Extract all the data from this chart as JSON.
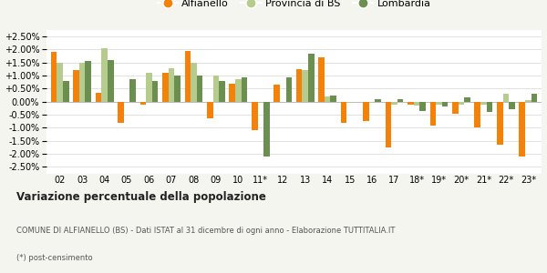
{
  "categories": [
    "02",
    "03",
    "04",
    "05",
    "06",
    "07",
    "08",
    "09",
    "10",
    "11*",
    "12",
    "13",
    "14",
    "15",
    "16",
    "17",
    "18*",
    "19*",
    "20*",
    "21*",
    "22*",
    "23*"
  ],
  "alfianello": [
    1.9,
    1.2,
    0.35,
    -0.8,
    -0.1,
    1.1,
    1.95,
    -0.65,
    0.7,
    -1.1,
    0.65,
    1.25,
    1.7,
    -0.8,
    -0.75,
    -1.75,
    -0.1,
    -0.9,
    -0.45,
    -1.0,
    -1.65,
    -2.1
  ],
  "provincia_bs": [
    1.5,
    1.5,
    2.05,
    0.0,
    1.1,
    1.3,
    1.5,
    1.0,
    0.85,
    -0.05,
    0.0,
    1.2,
    0.2,
    -0.05,
    -0.05,
    -0.1,
    -0.15,
    -0.1,
    -0.1,
    -0.1,
    0.3,
    0.05
  ],
  "lombardia": [
    0.8,
    1.55,
    1.6,
    0.85,
    0.8,
    1.0,
    1.0,
    0.8,
    0.95,
    -2.1,
    0.95,
    1.85,
    0.25,
    0.0,
    0.1,
    0.1,
    -0.35,
    -0.2,
    0.15,
    -0.4,
    -0.3,
    0.3
  ],
  "color_alfianello": "#f4820a",
  "color_provincia": "#b5cc8e",
  "color_lombardia": "#6b8f4e",
  "title": "Variazione percentuale della popolazione",
  "subtitle2": "COMUNE DI ALFIANELLO (BS) - Dati ISTAT al 31 dicembre di ogni anno - Elaborazione TUTTITALIA.IT",
  "subtitle3": "(*) post-censimento",
  "ylim_pct": [
    -2.75,
    2.75
  ],
  "yticks_pct": [
    -2.5,
    -2.0,
    -1.5,
    -1.0,
    -0.5,
    0.0,
    0.5,
    1.0,
    1.5,
    2.0,
    2.5
  ],
  "bg_color": "#f5f5f0",
  "plot_bg": "#ffffff",
  "legend_labels": [
    "Alfianello",
    "Provincia di BS",
    "Lombardia"
  ]
}
